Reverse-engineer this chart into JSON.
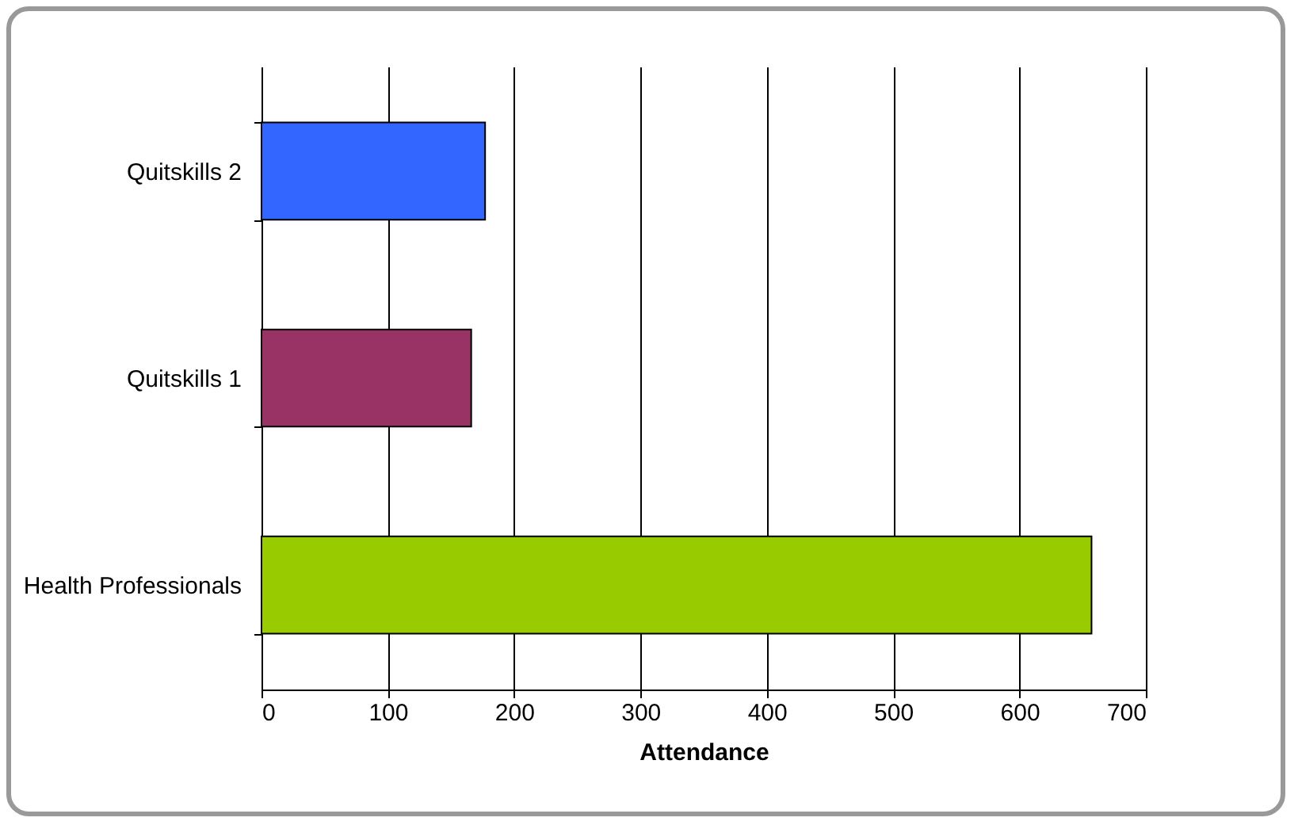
{
  "chart_data": {
    "type": "bar",
    "orientation": "horizontal",
    "xlabel": "Attendance",
    "categories": [
      "Quitskills 2",
      "Quitskills 1",
      "Health Professionals"
    ],
    "values": [
      177,
      166,
      657
    ],
    "colors": [
      "#3366ff",
      "#993366",
      "#99cc00"
    ],
    "xlim": [
      0,
      700
    ],
    "xticks": [
      0,
      100,
      200,
      300,
      400,
      500,
      600,
      700
    ],
    "grid": "x"
  }
}
